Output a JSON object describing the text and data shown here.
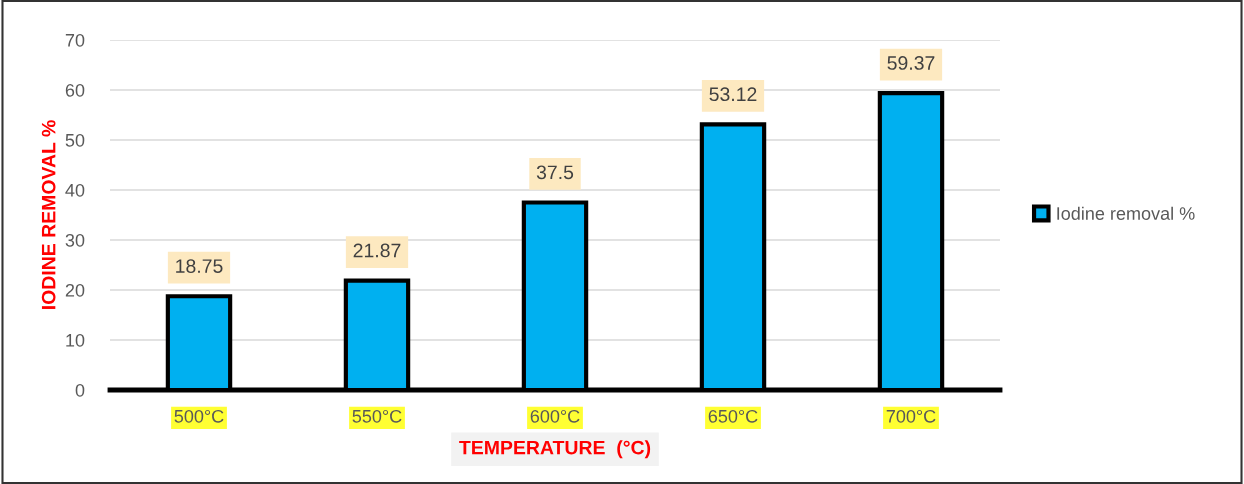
{
  "chart_data": {
    "type": "bar",
    "xlabel": "TEMPERATURE  (°C)",
    "ylabel": "IODINE REMOVAL %",
    "categories": [
      "500°C",
      "550°C",
      "600°C",
      "650°C",
      "700°C"
    ],
    "series": [
      {
        "name": "Iodine removal %",
        "color": "#00b0f0",
        "values": [
          18.75,
          21.87,
          37.5,
          53.12,
          59.37
        ]
      }
    ],
    "ylim": [
      0,
      70
    ],
    "yticks": [
      0,
      10,
      20,
      30,
      40,
      50,
      60,
      70
    ],
    "grid": "y",
    "legend": "right",
    "data_labels": true
  }
}
